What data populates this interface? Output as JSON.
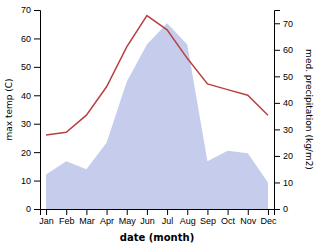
{
  "chart_data": {
    "type": "line",
    "xlabel": "date (month)",
    "ylabel": "max temp (C)",
    "y2label": "med. precipitation (kg/m2)",
    "categories": [
      "Jan",
      "Feb",
      "Mar",
      "Apr",
      "May",
      "Jun",
      "Jul",
      "Aug",
      "Sep",
      "Oct",
      "Nov",
      "Dec"
    ],
    "series": [
      {
        "type": "area",
        "axis": "y2",
        "color": "#c5ccec",
        "values": [
          13,
          18,
          15,
          25,
          48,
          62,
          70,
          62,
          18,
          22,
          21,
          10
        ]
      },
      {
        "type": "line",
        "color": "#b94040",
        "values": [
          26,
          27,
          33,
          43,
          57,
          68,
          63,
          53,
          44,
          42,
          40,
          33
        ]
      }
    ],
    "ylim": [
      0,
      70
    ],
    "yticks": [
      0,
      10,
      20,
      30,
      40,
      50,
      60,
      70
    ],
    "y2lim": [
      0,
      75
    ],
    "y2ticks": [
      0,
      10,
      20,
      30,
      40,
      50,
      60,
      70
    ],
    "grid": false
  }
}
